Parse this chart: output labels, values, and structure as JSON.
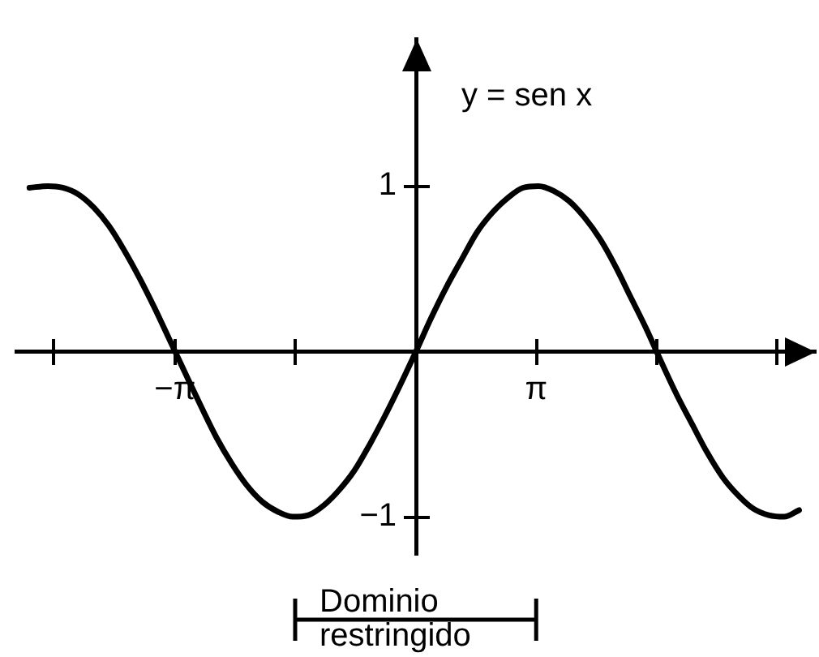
{
  "chart_data": {
    "type": "line",
    "x": [
      -5.67,
      -5.35,
      -5.09,
      -4.82,
      -4.55,
      -4.29,
      -4.02,
      -3.75,
      -3.49,
      -3.22,
      -2.95,
      -2.69,
      -2.42,
      -2.15,
      -1.89,
      -1.62,
      -1.35,
      -1.09,
      -0.82,
      -0.55,
      -0.29,
      -0.02,
      0.25,
      0.51,
      0.78,
      1.05,
      1.31,
      1.58,
      1.85,
      2.11,
      2.38,
      2.65,
      2.91,
      3.18,
      3.45,
      3.71,
      3.98,
      4.25,
      4.51,
      4.78,
      5.05,
      5.31,
      5.58,
      5.85,
      6.11,
      6.38,
      6.65,
      6.91,
      7.18,
      7.45,
      7.71
    ],
    "series": [
      {
        "name": "y = sen x",
        "color": "#000000",
        "values": [
          0.99,
          1,
          0.99,
          0.95,
          0.87,
          0.76,
          0.61,
          0.44,
          0.26,
          0.06,
          -0.14,
          -0.33,
          -0.52,
          -0.68,
          -0.81,
          -0.91,
          -0.97,
          -1,
          -0.99,
          -0.93,
          -0.84,
          -0.72,
          -0.56,
          -0.39,
          -0.2,
          0,
          0.2,
          0.39,
          0.56,
          0.72,
          0.84,
          0.93,
          0.99,
          1,
          0.97,
          0.91,
          0.81,
          0.68,
          0.52,
          0.33,
          0.14,
          -0.06,
          -0.26,
          -0.44,
          -0.61,
          -0.76,
          -0.87,
          -0.95,
          -0.99,
          -1,
          -0.96
        ]
      }
    ],
    "xlim": [
      -5.9,
      8.0
    ],
    "ylim": [
      -1.23,
      1.89
    ],
    "xticks": [
      {
        "value": -5.24,
        "label": null
      },
      {
        "value": -3.14,
        "label": "−π"
      },
      {
        "value": -1.05,
        "label": null
      },
      {
        "value": 3.14,
        "label": "π"
      },
      {
        "value": 5.24,
        "label": null
      },
      {
        "value": 7.33,
        "label": null
      }
    ],
    "yticks": [
      -1,
      1
    ],
    "marker": "none",
    "annotations": [
      "Dominio restringido"
    ]
  }
}
